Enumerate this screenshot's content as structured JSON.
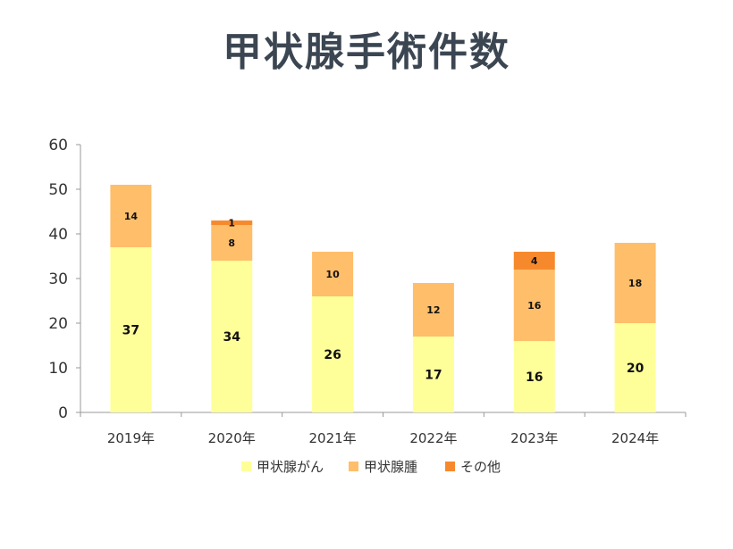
{
  "chart_data": {
    "type": "bar",
    "stacked": true,
    "title": "甲状腺手術件数",
    "xlabel": "",
    "ylabel": "",
    "ylim": [
      0,
      60
    ],
    "yticks": [
      "0",
      "10",
      "20",
      "30",
      "40",
      "50",
      "60"
    ],
    "categories": [
      "2019年",
      "2020年",
      "2021年",
      "2022年",
      "2023年",
      "2024年"
    ],
    "series": [
      {
        "name": "甲状腺がん",
        "color": "#FFFF99",
        "values": [
          37,
          34,
          26,
          17,
          16,
          20
        ]
      },
      {
        "name": "甲状腺腫",
        "color": "#FFBE6A",
        "values": [
          14,
          8,
          10,
          12,
          16,
          18
        ]
      },
      {
        "name": "その他",
        "color": "#F7892D",
        "values": [
          0,
          1,
          0,
          0,
          4,
          0
        ]
      }
    ],
    "grid": false,
    "legend_position": "bottom"
  }
}
